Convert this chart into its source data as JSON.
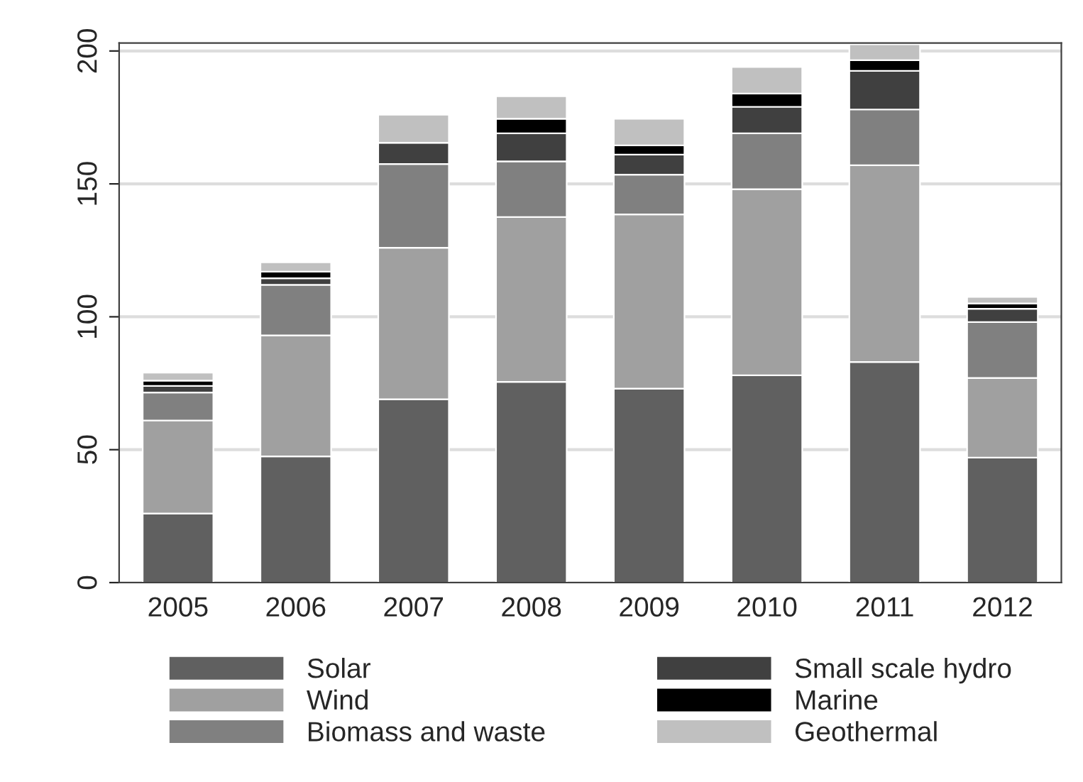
{
  "chart_data": {
    "type": "bar",
    "stacked": true,
    "categories": [
      "2005",
      "2006",
      "2007",
      "2008",
      "2009",
      "2010",
      "2011",
      "2012"
    ],
    "series": [
      {
        "name": "Solar",
        "color": "#606060",
        "values": [
          26,
          47.5,
          69,
          75.5,
          73,
          78,
          83,
          47
        ]
      },
      {
        "name": "Wind",
        "color": "#a0a0a0",
        "values": [
          35,
          45.5,
          57,
          62,
          65.5,
          70,
          74,
          30
        ]
      },
      {
        "name": "Biomass and waste",
        "color": "#808080",
        "values": [
          10.5,
          19,
          31.5,
          21,
          15,
          21,
          21,
          21
        ]
      },
      {
        "name": "Small scale hydro",
        "color": "#404040",
        "values": [
          2.5,
          2.5,
          8,
          10.5,
          7.5,
          10,
          14.5,
          5
        ]
      },
      {
        "name": "Marine",
        "color": "#000000",
        "values": [
          2,
          2.5,
          0,
          5.5,
          3.5,
          5,
          4,
          2
        ]
      },
      {
        "name": "Geothermal",
        "color": "#c0c0c0",
        "values": [
          3,
          3.5,
          10.5,
          8.5,
          10,
          10,
          6,
          2.5
        ]
      }
    ],
    "ylim": [
      0,
      203
    ],
    "yticks": [
      0,
      50,
      100,
      150,
      200
    ],
    "grid": "y",
    "legend": "bottom"
  }
}
